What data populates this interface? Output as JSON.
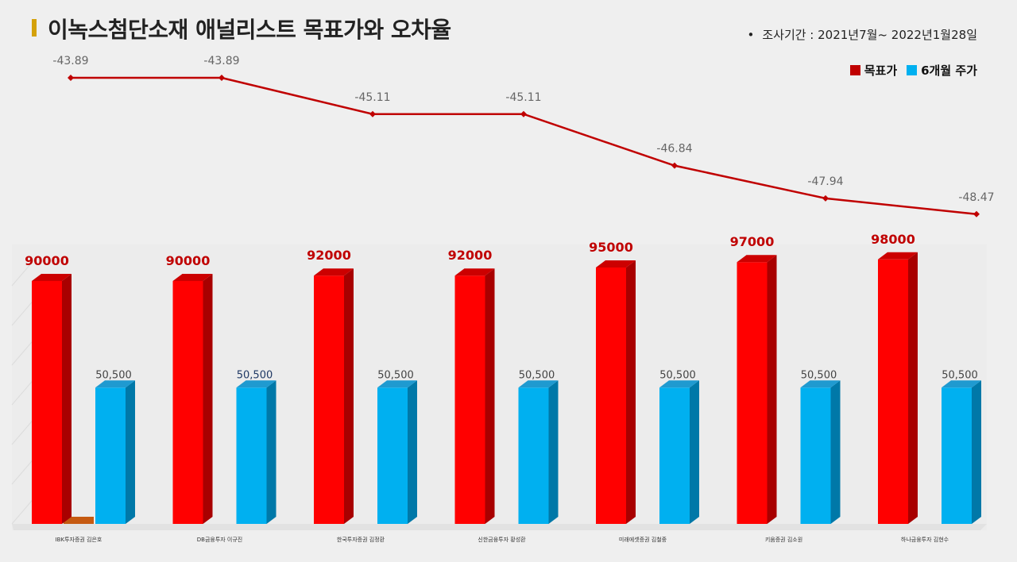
{
  "title": "이녹스첨단소재 애널리스트 목표가와 오차율",
  "survey_period": "조사기간 : 2021년7월~ 2022년1월28일",
  "colors": {
    "target": "#ff0000",
    "price": "#00b0f0",
    "line": "#c00000",
    "accent": "#d4a10a"
  },
  "chart_data": [
    {
      "type": "bar",
      "categories": [
        "IBK투자증권 김은호",
        "DB금융투자 이규진",
        "한국투자증권 김정환",
        "신한금융투자 황성환",
        "미래에셋증권 김철중",
        "키움증권 김소원",
        "하나금융투자 김현수"
      ],
      "series": [
        {
          "name": "목표가",
          "values": [
            90000,
            90000,
            92000,
            92000,
            95000,
            97000,
            98000
          ],
          "labels": [
            "90000",
            "90000",
            "92000",
            "92000",
            "95000",
            "97000",
            "98000"
          ]
        },
        {
          "name": "6개월 주가",
          "values": [
            50500,
            50500,
            50500,
            50500,
            50500,
            50500,
            50500
          ],
          "labels": [
            "50,500",
            "50,500",
            "50,500",
            "50,500",
            "50,500",
            "50,500",
            "50,500"
          ]
        }
      ],
      "legend": "top-right"
    },
    {
      "type": "line",
      "categories": [
        "IBK투자증권 김은호",
        "DB금융투자 이규진",
        "한국투자증권 김정환",
        "신한금융투자 황성환",
        "미래에셋증권 김철중",
        "키움증권 김소원",
        "하나금융투자 김현수"
      ],
      "series": [
        {
          "values": [
            -43.89,
            -43.89,
            -45.11,
            -45.11,
            -46.84,
            -47.94,
            -48.47
          ],
          "labels": [
            "-43.89",
            "-43.89",
            "-45.11",
            "-45.11",
            "-46.84",
            "-47.94",
            "-48.47"
          ]
        }
      ]
    }
  ]
}
